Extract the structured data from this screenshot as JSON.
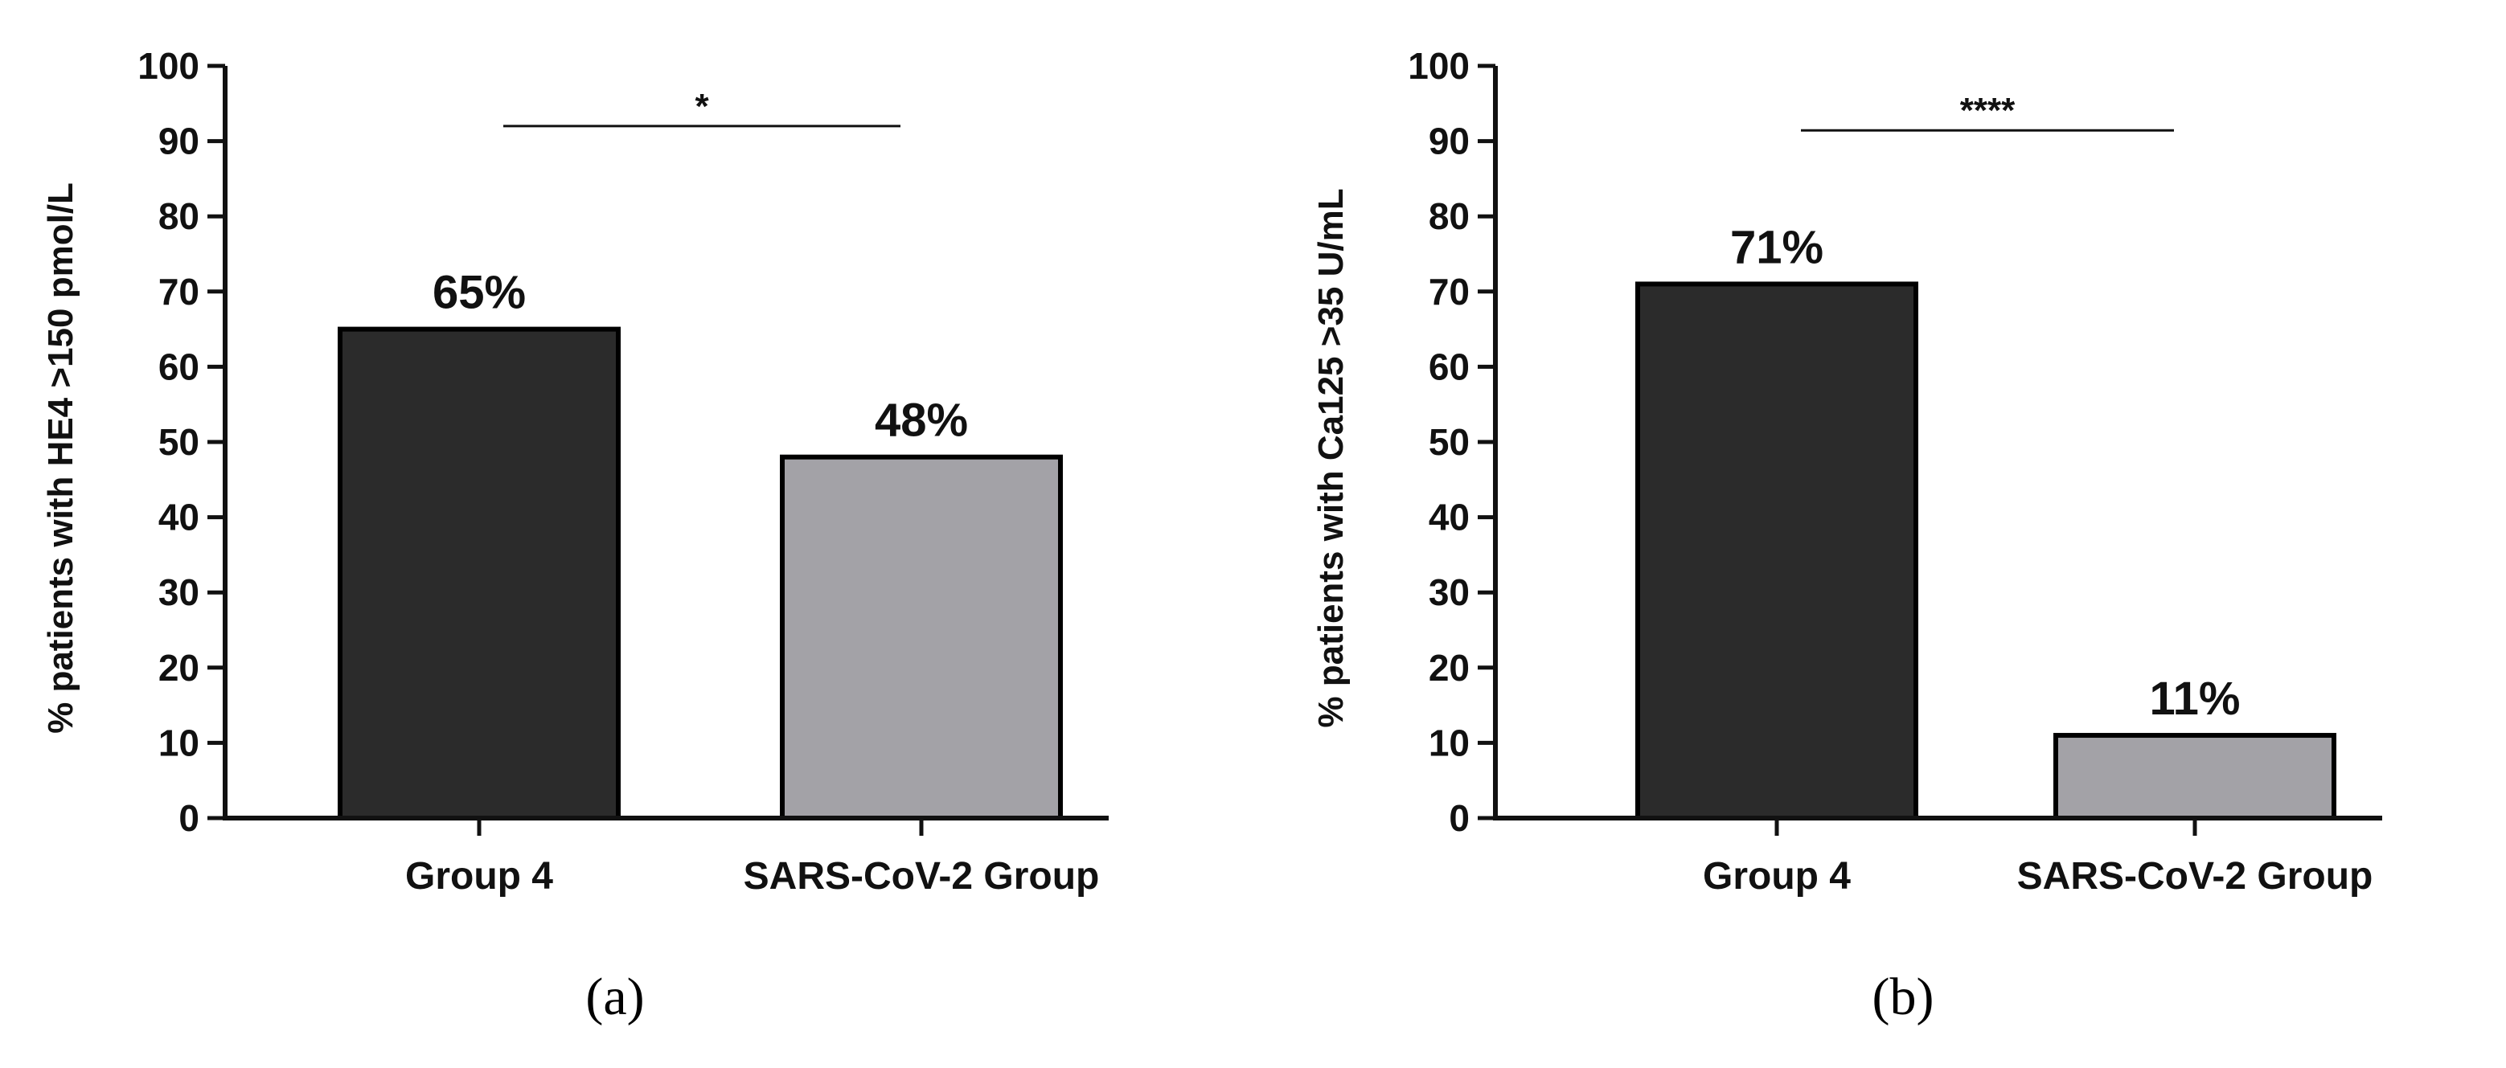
{
  "chart_data": [
    {
      "panel": "(a)",
      "type": "bar",
      "categories": [
        "Group 4",
        "SARS-CoV-2 Group"
      ],
      "values": [
        65,
        48
      ],
      "data_labels": [
        "65%",
        "48%"
      ],
      "bar_colors": [
        "#2b2b2b",
        "#a3a2a7"
      ],
      "title": "",
      "xlabel": "",
      "ylabel": "% patients with HE4 >150 pmol/L",
      "ylim": [
        0,
        100
      ],
      "yticks": [
        0,
        10,
        20,
        30,
        40,
        50,
        60,
        70,
        80,
        90,
        100
      ],
      "significance": {
        "label": "*",
        "between": [
          "Group 4",
          "SARS-CoV-2 Group"
        ],
        "y": 92
      },
      "grid": false,
      "legend": "none"
    },
    {
      "panel": "(b)",
      "type": "bar",
      "categories": [
        "Group 4",
        "SARS-CoV-2 Group"
      ],
      "values": [
        71,
        11
      ],
      "data_labels": [
        "71%",
        "11%"
      ],
      "bar_colors": [
        "#2b2b2b",
        "#a3a2a7"
      ],
      "title": "",
      "xlabel": "",
      "ylabel": "% patients with Ca125 >35 U/mL",
      "ylim": [
        0,
        100
      ],
      "yticks": [
        0,
        10,
        20,
        30,
        40,
        50,
        60,
        70,
        80,
        90,
        100
      ],
      "significance": {
        "label": "****",
        "between": [
          "Group 4",
          "SARS-CoV-2 Group"
        ],
        "y": 91
      },
      "grid": false,
      "legend": "none"
    }
  ],
  "colors": {
    "axis": "#111111",
    "bar_outline": "#000000"
  }
}
